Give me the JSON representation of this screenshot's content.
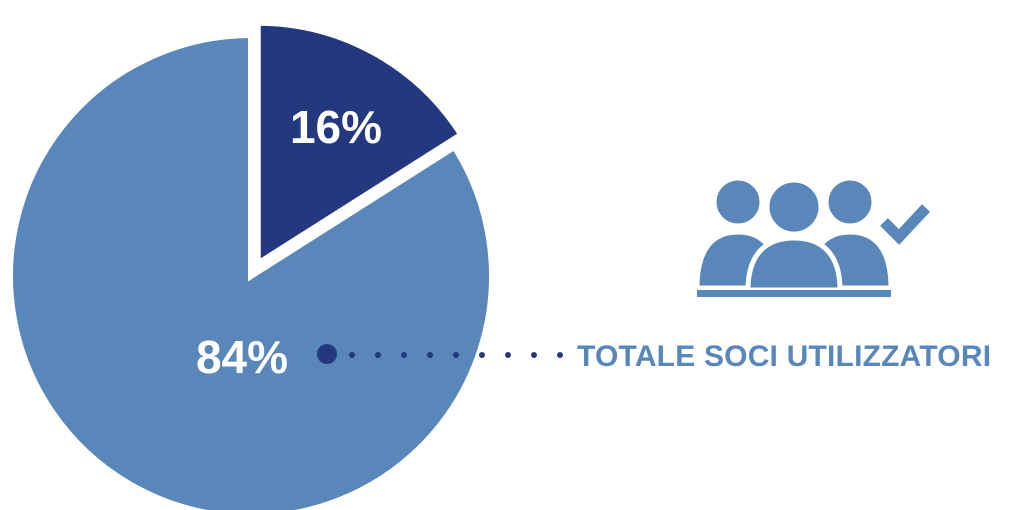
{
  "colors": {
    "primary_slice": "#5a87ba",
    "secondary_slice": "#24387f",
    "icon": "#5a87ba",
    "icon_check": "#5a87ba",
    "callout_text": "#5a87ba",
    "dot_large": "#24387f",
    "dot_small": "#24387f"
  },
  "chart_data": {
    "type": "pie",
    "slices": [
      {
        "value": 16,
        "label": "16%",
        "exploded": true
      },
      {
        "value": 84,
        "label": "84%",
        "exploded": false
      }
    ],
    "callout": {
      "slice_label": "84%",
      "text": "TOTALE SOCI UTILIZZATORI",
      "icon": "users-group-check-icon"
    }
  }
}
